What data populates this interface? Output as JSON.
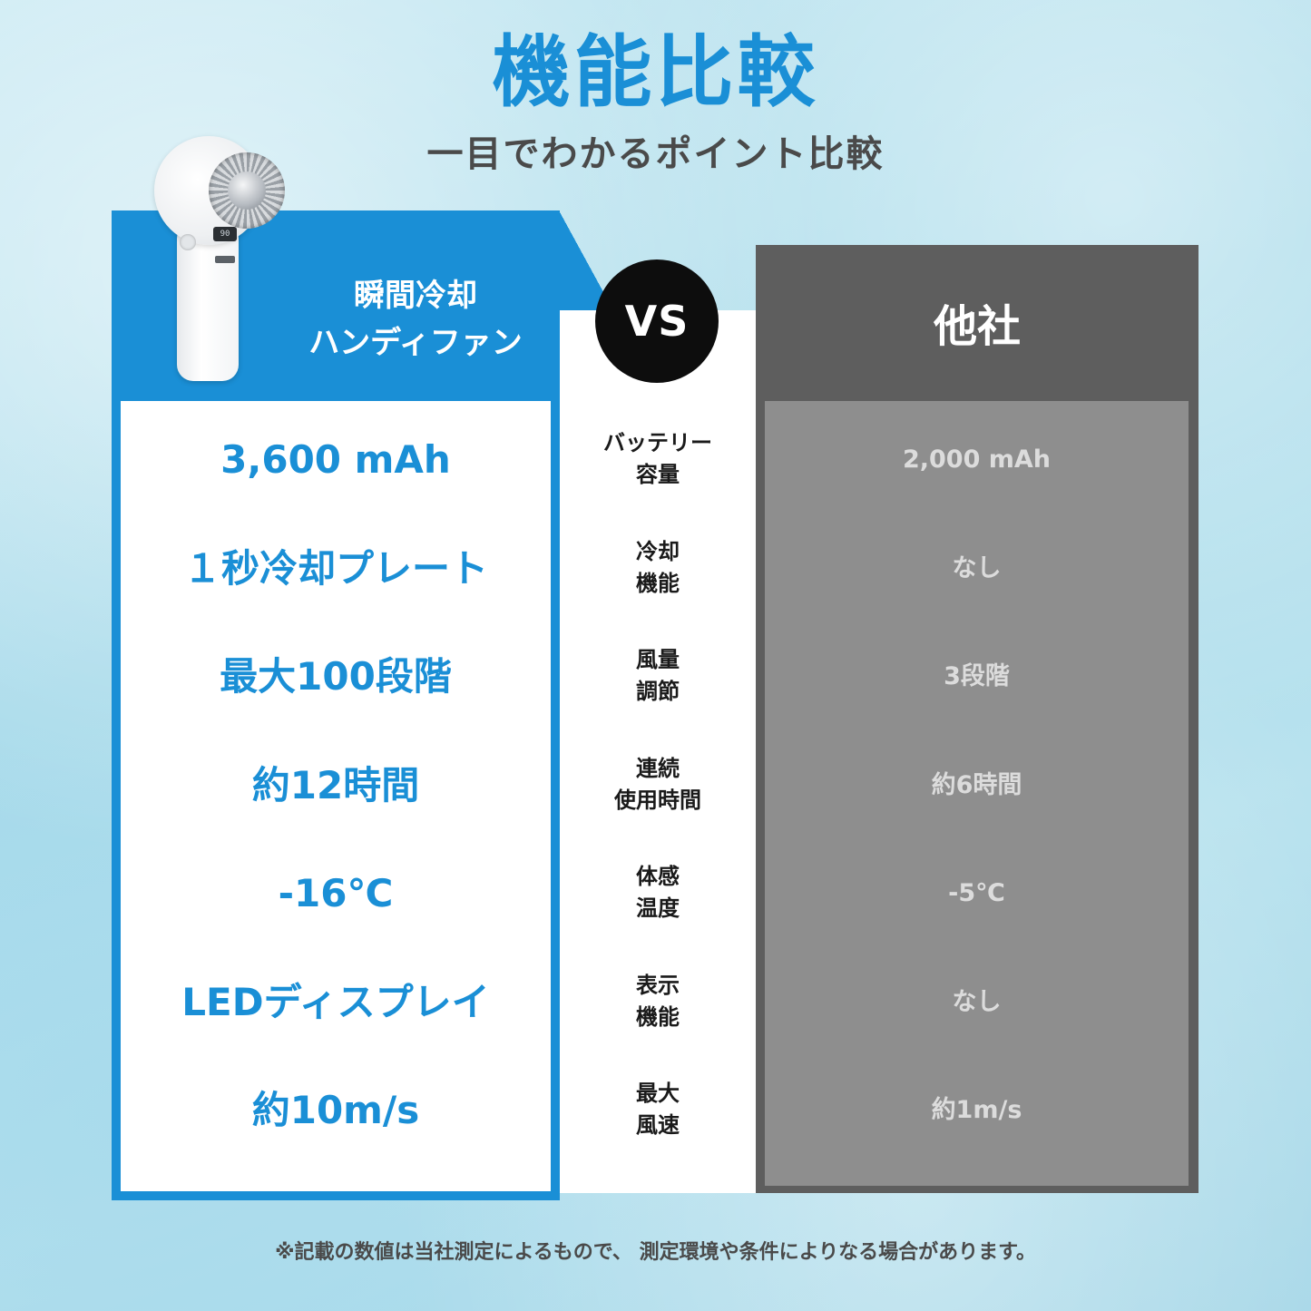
{
  "header": {
    "title": "機能比較",
    "subtitle": "一目でわかるポイント比較"
  },
  "product": {
    "name_line1": "瞬間冷却",
    "name_line2": "ハンディファン",
    "display_reading": "90"
  },
  "vs_label": "VS",
  "competitor": {
    "label": "他社"
  },
  "rows": [
    {
      "feature_line1": "バッテリー",
      "feature_line2": "容量",
      "ours": "3,600 mAh",
      "theirs": "2,000 mAh"
    },
    {
      "feature_line1": "冷却",
      "feature_line2": "機能",
      "ours": "１秒冷却プレート",
      "theirs": "なし"
    },
    {
      "feature_line1": "風量",
      "feature_line2": "調節",
      "ours": "最大100段階",
      "theirs": "3段階"
    },
    {
      "feature_line1": "連続",
      "feature_line2": "使用時間",
      "ours": "約12時間",
      "theirs": "約6時間"
    },
    {
      "feature_line1": "体感",
      "feature_line2": "温度",
      "ours": "-16℃",
      "theirs": "-5℃"
    },
    {
      "feature_line1": "表示",
      "feature_line2": "機能",
      "ours": "LEDディスプレイ",
      "theirs": "なし"
    },
    {
      "feature_line1": "最大",
      "feature_line2": "風速",
      "ours": "約10m/s",
      "theirs": "約1m/s"
    }
  ],
  "footnote": "※記載の数値は当社測定によるもので、 測定環境や条件によりなる場合があります。",
  "colors": {
    "accent": "#1a8fd6",
    "competitor_dark": "#5e5e5e",
    "competitor_light": "#8e8e8e"
  }
}
